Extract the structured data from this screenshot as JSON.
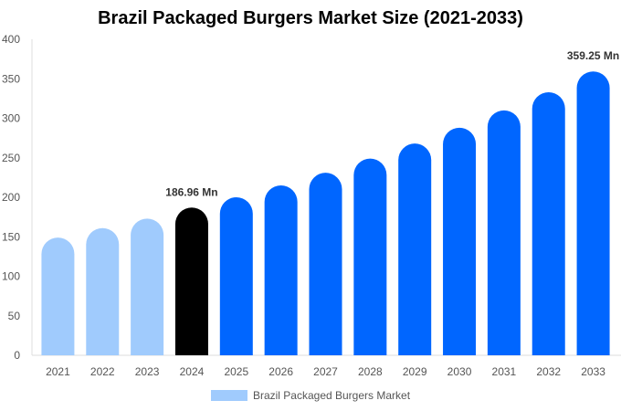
{
  "chart_data": {
    "type": "bar",
    "title": "Brazil Packaged Burgers Market Size (2021-2033)",
    "categories": [
      "2021",
      "2022",
      "2023",
      "2024",
      "2025",
      "2026",
      "2027",
      "2028",
      "2029",
      "2030",
      "2031",
      "2032",
      "2033"
    ],
    "series": [
      {
        "name": "Brazil Packaged Burgers Market",
        "values": [
          149,
          161,
          173,
          186.96,
          200,
          215,
          231,
          249,
          268,
          288,
          310,
          333,
          359.25
        ]
      }
    ],
    "data_labels": {
      "3": "186.96 Mn",
      "12": "359.25 Mn"
    },
    "yticks": [
      0,
      50,
      100,
      150,
      200,
      250,
      300,
      350,
      400
    ],
    "ylim": [
      0,
      400
    ],
    "xlabel": "",
    "ylabel": "",
    "grid": false,
    "legend": "bottom",
    "colors": {
      "historical": "#a0cbfd",
      "base_year": "#000000",
      "forecast": "#0066ff"
    }
  }
}
